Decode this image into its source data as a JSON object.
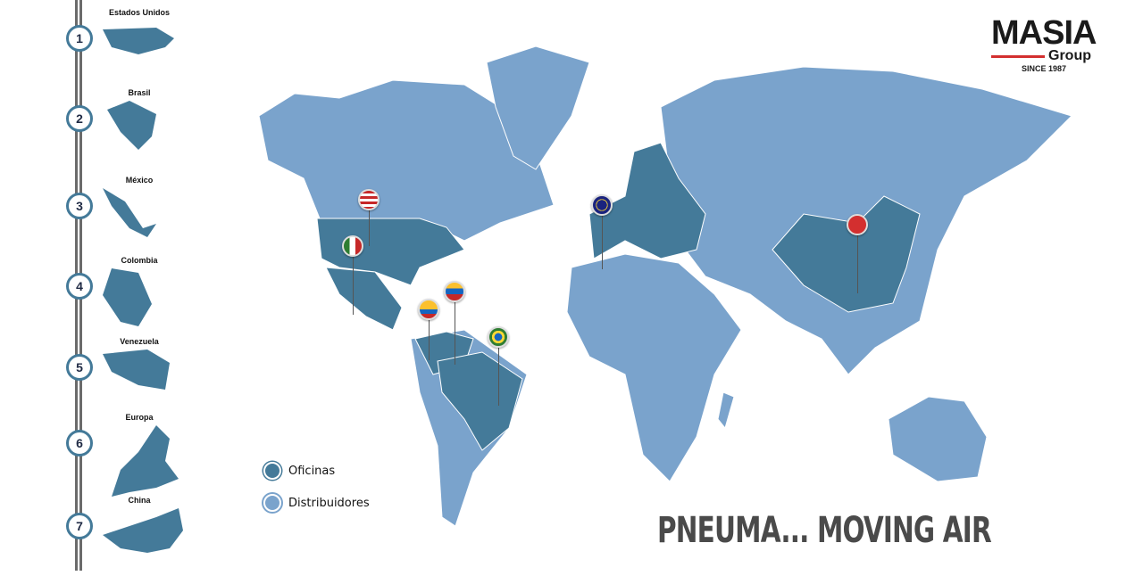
{
  "brand": {
    "name": "MASIA",
    "sub": "Group",
    "since": "SINCE 1987",
    "accent": "#d32f2f"
  },
  "slogan": "PNEUMA... MOVING AIR",
  "colors": {
    "office": "#447a99",
    "distributor": "#7aa3cc"
  },
  "countries": [
    {
      "num": "1",
      "name": "Estados Unidos"
    },
    {
      "num": "2",
      "name": "Brasil"
    },
    {
      "num": "3",
      "name": "México"
    },
    {
      "num": "4",
      "name": "Colombia"
    },
    {
      "num": "5",
      "name": "Venezuela"
    },
    {
      "num": "6",
      "name": "Europa"
    },
    {
      "num": "7",
      "name": "China"
    }
  ],
  "legend": {
    "office": "Oficinas",
    "distributor": "Distribuidores"
  },
  "pins": [
    "usa-flag",
    "mexico-flag",
    "colombia-flag",
    "venezuela-flag",
    "brazil-flag",
    "eu-flag",
    "china-flag"
  ]
}
